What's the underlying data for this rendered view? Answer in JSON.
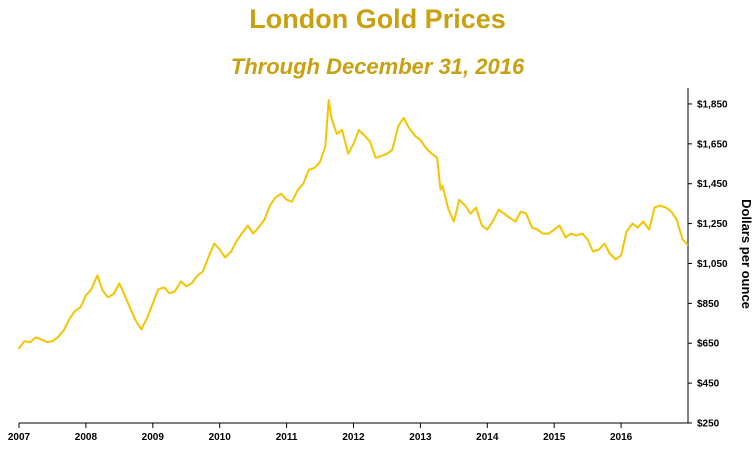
{
  "chart_data": {
    "type": "line",
    "title": "London Gold Prices",
    "subtitle": "Through December 31, 2016",
    "ylabel": "Dollars per ounce",
    "xlabel": "",
    "ylim": [
      250,
      1930
    ],
    "xlim": [
      2007.0,
      2017.0
    ],
    "y_ticks": [
      {
        "value": 250,
        "label": "$250"
      },
      {
        "value": 450,
        "label": "$450"
      },
      {
        "value": 650,
        "label": "$650"
      },
      {
        "value": 850,
        "label": "$850"
      },
      {
        "value": 1050,
        "label": "$1,050"
      },
      {
        "value": 1250,
        "label": "$1,250"
      },
      {
        "value": 1450,
        "label": "$1,450"
      },
      {
        "value": 1650,
        "label": "$1,650"
      },
      {
        "value": 1850,
        "label": "$1,850"
      }
    ],
    "x_ticks": [
      {
        "value": 2007,
        "label": "2007"
      },
      {
        "value": 2008,
        "label": "2008"
      },
      {
        "value": 2009,
        "label": "2009"
      },
      {
        "value": 2010,
        "label": "2010"
      },
      {
        "value": 2011,
        "label": "2011"
      },
      {
        "value": 2012,
        "label": "2012"
      },
      {
        "value": 2013,
        "label": "2013"
      },
      {
        "value": 2014,
        "label": "2014"
      },
      {
        "value": 2015,
        "label": "2015"
      },
      {
        "value": 2016,
        "label": "2016"
      }
    ],
    "grid": false,
    "y_axis_side": "right",
    "line_color": "#f5c400",
    "text_color": "#c9a010",
    "series": [
      {
        "x": [
          2007.0,
          2007.08,
          2007.17,
          2007.25,
          2007.33,
          2007.42,
          2007.5,
          2007.58,
          2007.67,
          2007.75,
          2007.83,
          2007.92,
          2008.0,
          2008.08,
          2008.17,
          2008.25,
          2008.33,
          2008.42,
          2008.5,
          2008.58,
          2008.67,
          2008.75,
          2008.83,
          2008.92,
          2009.0,
          2009.08,
          2009.17,
          2009.25,
          2009.33,
          2009.42,
          2009.5,
          2009.58,
          2009.67,
          2009.75,
          2009.83,
          2009.92,
          2010.0,
          2010.08,
          2010.17,
          2010.25,
          2010.33,
          2010.42,
          2010.5,
          2010.58,
          2010.67,
          2010.75,
          2010.83,
          2010.92,
          2011.0,
          2011.08,
          2011.17,
          2011.25,
          2011.33,
          2011.42,
          2011.5,
          2011.58,
          2011.63,
          2011.67,
          2011.75,
          2011.83,
          2011.92,
          2012.0,
          2012.08,
          2012.17,
          2012.25,
          2012.33,
          2012.42,
          2012.5,
          2012.58,
          2012.67,
          2012.75,
          2012.83,
          2012.92,
          2013.0,
          2013.08,
          2013.17,
          2013.25,
          2013.3,
          2013.33,
          2013.42,
          2013.5,
          2013.58,
          2013.67,
          2013.75,
          2013.83,
          2013.92,
          2014.0,
          2014.08,
          2014.17,
          2014.25,
          2014.33,
          2014.42,
          2014.5,
          2014.58,
          2014.67,
          2014.75,
          2014.83,
          2014.92,
          2015.0,
          2015.08,
          2015.17,
          2015.25,
          2015.33,
          2015.42,
          2015.5,
          2015.58,
          2015.67,
          2015.75,
          2015.83,
          2015.92,
          2016.0,
          2016.08,
          2016.17,
          2016.25,
          2016.33,
          2016.42,
          2016.5,
          2016.58,
          2016.67,
          2016.75,
          2016.83,
          2016.92,
          2016.99
        ],
        "y": [
          625,
          660,
          655,
          680,
          670,
          655,
          660,
          680,
          715,
          770,
          810,
          830,
          890,
          920,
          990,
          915,
          880,
          900,
          950,
          890,
          820,
          760,
          720,
          780,
          850,
          920,
          930,
          900,
          910,
          960,
          935,
          950,
          990,
          1010,
          1080,
          1150,
          1120,
          1080,
          1110,
          1160,
          1200,
          1240,
          1200,
          1230,
          1270,
          1340,
          1380,
          1400,
          1370,
          1360,
          1420,
          1450,
          1520,
          1530,
          1560,
          1640,
          1870,
          1780,
          1700,
          1720,
          1600,
          1650,
          1720,
          1690,
          1660,
          1580,
          1590,
          1600,
          1620,
          1740,
          1780,
          1730,
          1690,
          1670,
          1630,
          1600,
          1580,
          1420,
          1440,
          1320,
          1260,
          1370,
          1340,
          1300,
          1330,
          1240,
          1220,
          1260,
          1320,
          1300,
          1280,
          1260,
          1310,
          1300,
          1230,
          1220,
          1200,
          1200,
          1220,
          1240,
          1180,
          1200,
          1190,
          1200,
          1170,
          1110,
          1120,
          1150,
          1100,
          1070,
          1090,
          1210,
          1250,
          1230,
          1260,
          1220,
          1330,
          1340,
          1330,
          1310,
          1270,
          1170,
          1145
        ]
      }
    ]
  }
}
